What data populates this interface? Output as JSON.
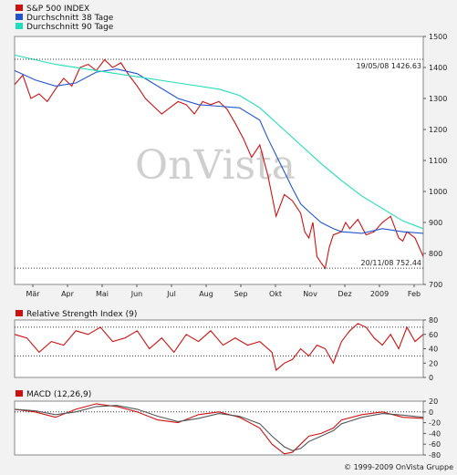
{
  "colors": {
    "price": "#cc1111",
    "ma38": "#2255cc",
    "ma90": "#22ddbb",
    "rsi": "#cc1111",
    "macd": "#cc1111",
    "signal": "#555555",
    "panel_bg": "#ffffff",
    "page_bg": "#f2f2f2"
  },
  "watermark": "OnVista",
  "copyright": "© 1999-2009 OnVista Gruppe",
  "chart_data": [
    {
      "type": "line",
      "name": "price-panel",
      "legend": [
        {
          "label": "S&P 500 INDEX",
          "color": "#cc1111"
        },
        {
          "label": "Durchschnitt 38 Tage",
          "color": "#2255cc"
        },
        {
          "label": "Durchschnitt 90 Tage",
          "color": "#22ddbb"
        }
      ],
      "x_ticks": [
        "Mär",
        "Apr",
        "Mai",
        "Jun",
        "Jul",
        "Aug",
        "Sep",
        "Okt",
        "Nov",
        "Dez",
        "2009",
        "Feb"
      ],
      "y_ticks": [
        700,
        800,
        900,
        1000,
        1100,
        1200,
        1300,
        1400,
        1500
      ],
      "ylim": [
        700,
        1500
      ],
      "xlim": [
        0,
        100
      ],
      "reference_lines": [
        {
          "value": 1426.63,
          "label": "19/05/08 1426.63"
        },
        {
          "value": 752.44,
          "label": "20/11/08 752.44"
        }
      ],
      "series": [
        {
          "name": "S&P 500 INDEX",
          "x": [
            0,
            2,
            4,
            6,
            8,
            10,
            12,
            14,
            16,
            18,
            20,
            22,
            24,
            26,
            28,
            30,
            32,
            34,
            36,
            38,
            40,
            42,
            44,
            46,
            48,
            50,
            52,
            54,
            56,
            58,
            60,
            62,
            64,
            66,
            68,
            70,
            71,
            72,
            73,
            74,
            75,
            76,
            77,
            78,
            80,
            81,
            82,
            84,
            86,
            88,
            90,
            92,
            94,
            95,
            96,
            97,
            98,
            100
          ],
          "y": [
            1345,
            1375,
            1300,
            1315,
            1290,
            1330,
            1365,
            1340,
            1400,
            1410,
            1390,
            1425,
            1400,
            1415,
            1375,
            1340,
            1300,
            1275,
            1250,
            1270,
            1290,
            1280,
            1250,
            1290,
            1280,
            1290,
            1265,
            1220,
            1170,
            1110,
            1150,
            1050,
            920,
            990,
            970,
            930,
            870,
            850,
            900,
            790,
            770,
            752,
            820,
            860,
            870,
            900,
            880,
            910,
            860,
            870,
            900,
            920,
            850,
            840,
            870,
            860,
            850,
            790
          ]
        },
        {
          "name": "Durchschnitt 38 Tage",
          "x": [
            0,
            5,
            10,
            15,
            20,
            25,
            30,
            35,
            40,
            45,
            50,
            55,
            60,
            62,
            65,
            68,
            70,
            72,
            75,
            78,
            80,
            85,
            90,
            95,
            100
          ],
          "y": [
            1390,
            1360,
            1340,
            1350,
            1385,
            1395,
            1380,
            1340,
            1300,
            1280,
            1275,
            1270,
            1230,
            1170,
            1090,
            1010,
            960,
            935,
            900,
            880,
            870,
            865,
            880,
            870,
            865
          ]
        },
        {
          "name": "Durchschnitt 90 Tage",
          "x": [
            0,
            10,
            20,
            30,
            40,
            50,
            55,
            60,
            65,
            70,
            75,
            80,
            85,
            90,
            95,
            100
          ],
          "y": [
            1440,
            1410,
            1390,
            1370,
            1350,
            1330,
            1310,
            1270,
            1210,
            1150,
            1090,
            1035,
            985,
            945,
            905,
            880
          ]
        }
      ]
    },
    {
      "type": "line",
      "name": "rsi-panel",
      "title": "Relative Strength Index (9)",
      "y_ticks": [
        0,
        20,
        40,
        60,
        80
      ],
      "ylim": [
        0,
        80
      ],
      "reference_lines": [
        {
          "value": 70
        },
        {
          "value": 30
        }
      ],
      "series": [
        {
          "name": "RSI",
          "x": [
            0,
            3,
            6,
            9,
            12,
            15,
            18,
            21,
            24,
            27,
            30,
            33,
            36,
            39,
            42,
            45,
            48,
            51,
            54,
            57,
            60,
            63,
            64,
            66,
            68,
            70,
            72,
            74,
            76,
            78,
            80,
            82,
            84,
            86,
            88,
            90,
            92,
            94,
            96,
            98,
            100
          ],
          "y": [
            60,
            55,
            35,
            50,
            45,
            65,
            60,
            70,
            50,
            55,
            65,
            40,
            55,
            35,
            60,
            50,
            65,
            45,
            55,
            45,
            50,
            35,
            10,
            20,
            25,
            40,
            30,
            45,
            40,
            20,
            50,
            65,
            75,
            70,
            55,
            45,
            60,
            40,
            70,
            50,
            60
          ]
        }
      ]
    },
    {
      "type": "line",
      "name": "macd-panel",
      "title": "MACD (12,26,9)",
      "y_ticks": [
        -80,
        -60,
        -40,
        -20,
        0,
        20
      ],
      "ylim": [
        -80,
        20
      ],
      "series": [
        {
          "name": "MACD",
          "x": [
            0,
            5,
            10,
            15,
            20,
            25,
            30,
            35,
            40,
            45,
            50,
            55,
            60,
            63,
            66,
            68,
            70,
            72,
            75,
            78,
            80,
            85,
            90,
            95,
            100
          ],
          "y": [
            5,
            0,
            -10,
            5,
            15,
            10,
            0,
            -15,
            -20,
            -5,
            0,
            -10,
            -30,
            -60,
            -78,
            -75,
            -60,
            -45,
            -40,
            -30,
            -15,
            -5,
            0,
            -10,
            -12
          ]
        },
        {
          "name": "Signal",
          "x": [
            0,
            5,
            10,
            15,
            20,
            25,
            30,
            35,
            40,
            45,
            50,
            55,
            60,
            63,
            66,
            68,
            70,
            72,
            75,
            78,
            80,
            85,
            90,
            95,
            100
          ],
          "y": [
            5,
            2,
            -5,
            0,
            10,
            12,
            5,
            -8,
            -18,
            -12,
            -3,
            -8,
            -22,
            -45,
            -65,
            -72,
            -68,
            -55,
            -45,
            -35,
            -22,
            -10,
            -3,
            -6,
            -10
          ]
        }
      ]
    }
  ]
}
